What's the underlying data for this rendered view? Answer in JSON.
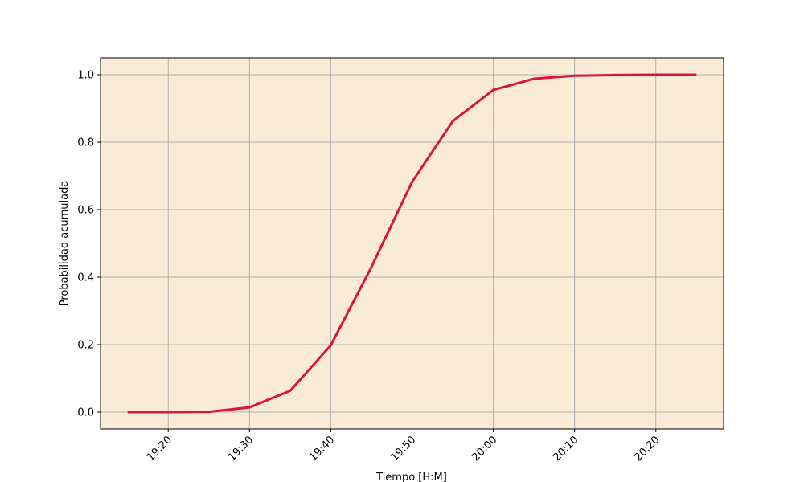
{
  "chart_data": {
    "type": "line",
    "title": "",
    "xlabel": "Tiempo [H:M]",
    "ylabel": "Probabilidad acumulada",
    "x_unit": "time HH:MM",
    "x_ticks": [
      "19:20",
      "19:30",
      "19:40",
      "19:50",
      "20:00",
      "20:10",
      "20:20"
    ],
    "y_ticks": [
      "0.0",
      "0.2",
      "0.4",
      "0.6",
      "0.8",
      "1.0"
    ],
    "xlim": [
      "19:11:40",
      "20:28:20"
    ],
    "ylim": [
      -0.05,
      1.05
    ],
    "grid": true,
    "legend": "none",
    "colors": {
      "background": "#faebd7",
      "line": "#dc143c",
      "grid": "#b0b0b0"
    },
    "series": [
      {
        "x": [
          "19:15",
          "19:20",
          "19:25",
          "19:30",
          "19:35",
          "19:40",
          "19:45",
          "19:50",
          "19:55",
          "20:00",
          "20:05",
          "20:10",
          "20:15",
          "20:20",
          "20:25"
        ],
        "values": [
          0.0,
          0.0,
          0.001,
          0.014,
          0.063,
          0.198,
          0.43,
          0.682,
          0.862,
          0.955,
          0.988,
          0.997,
          0.999,
          1.0,
          1.0
        ]
      }
    ]
  }
}
